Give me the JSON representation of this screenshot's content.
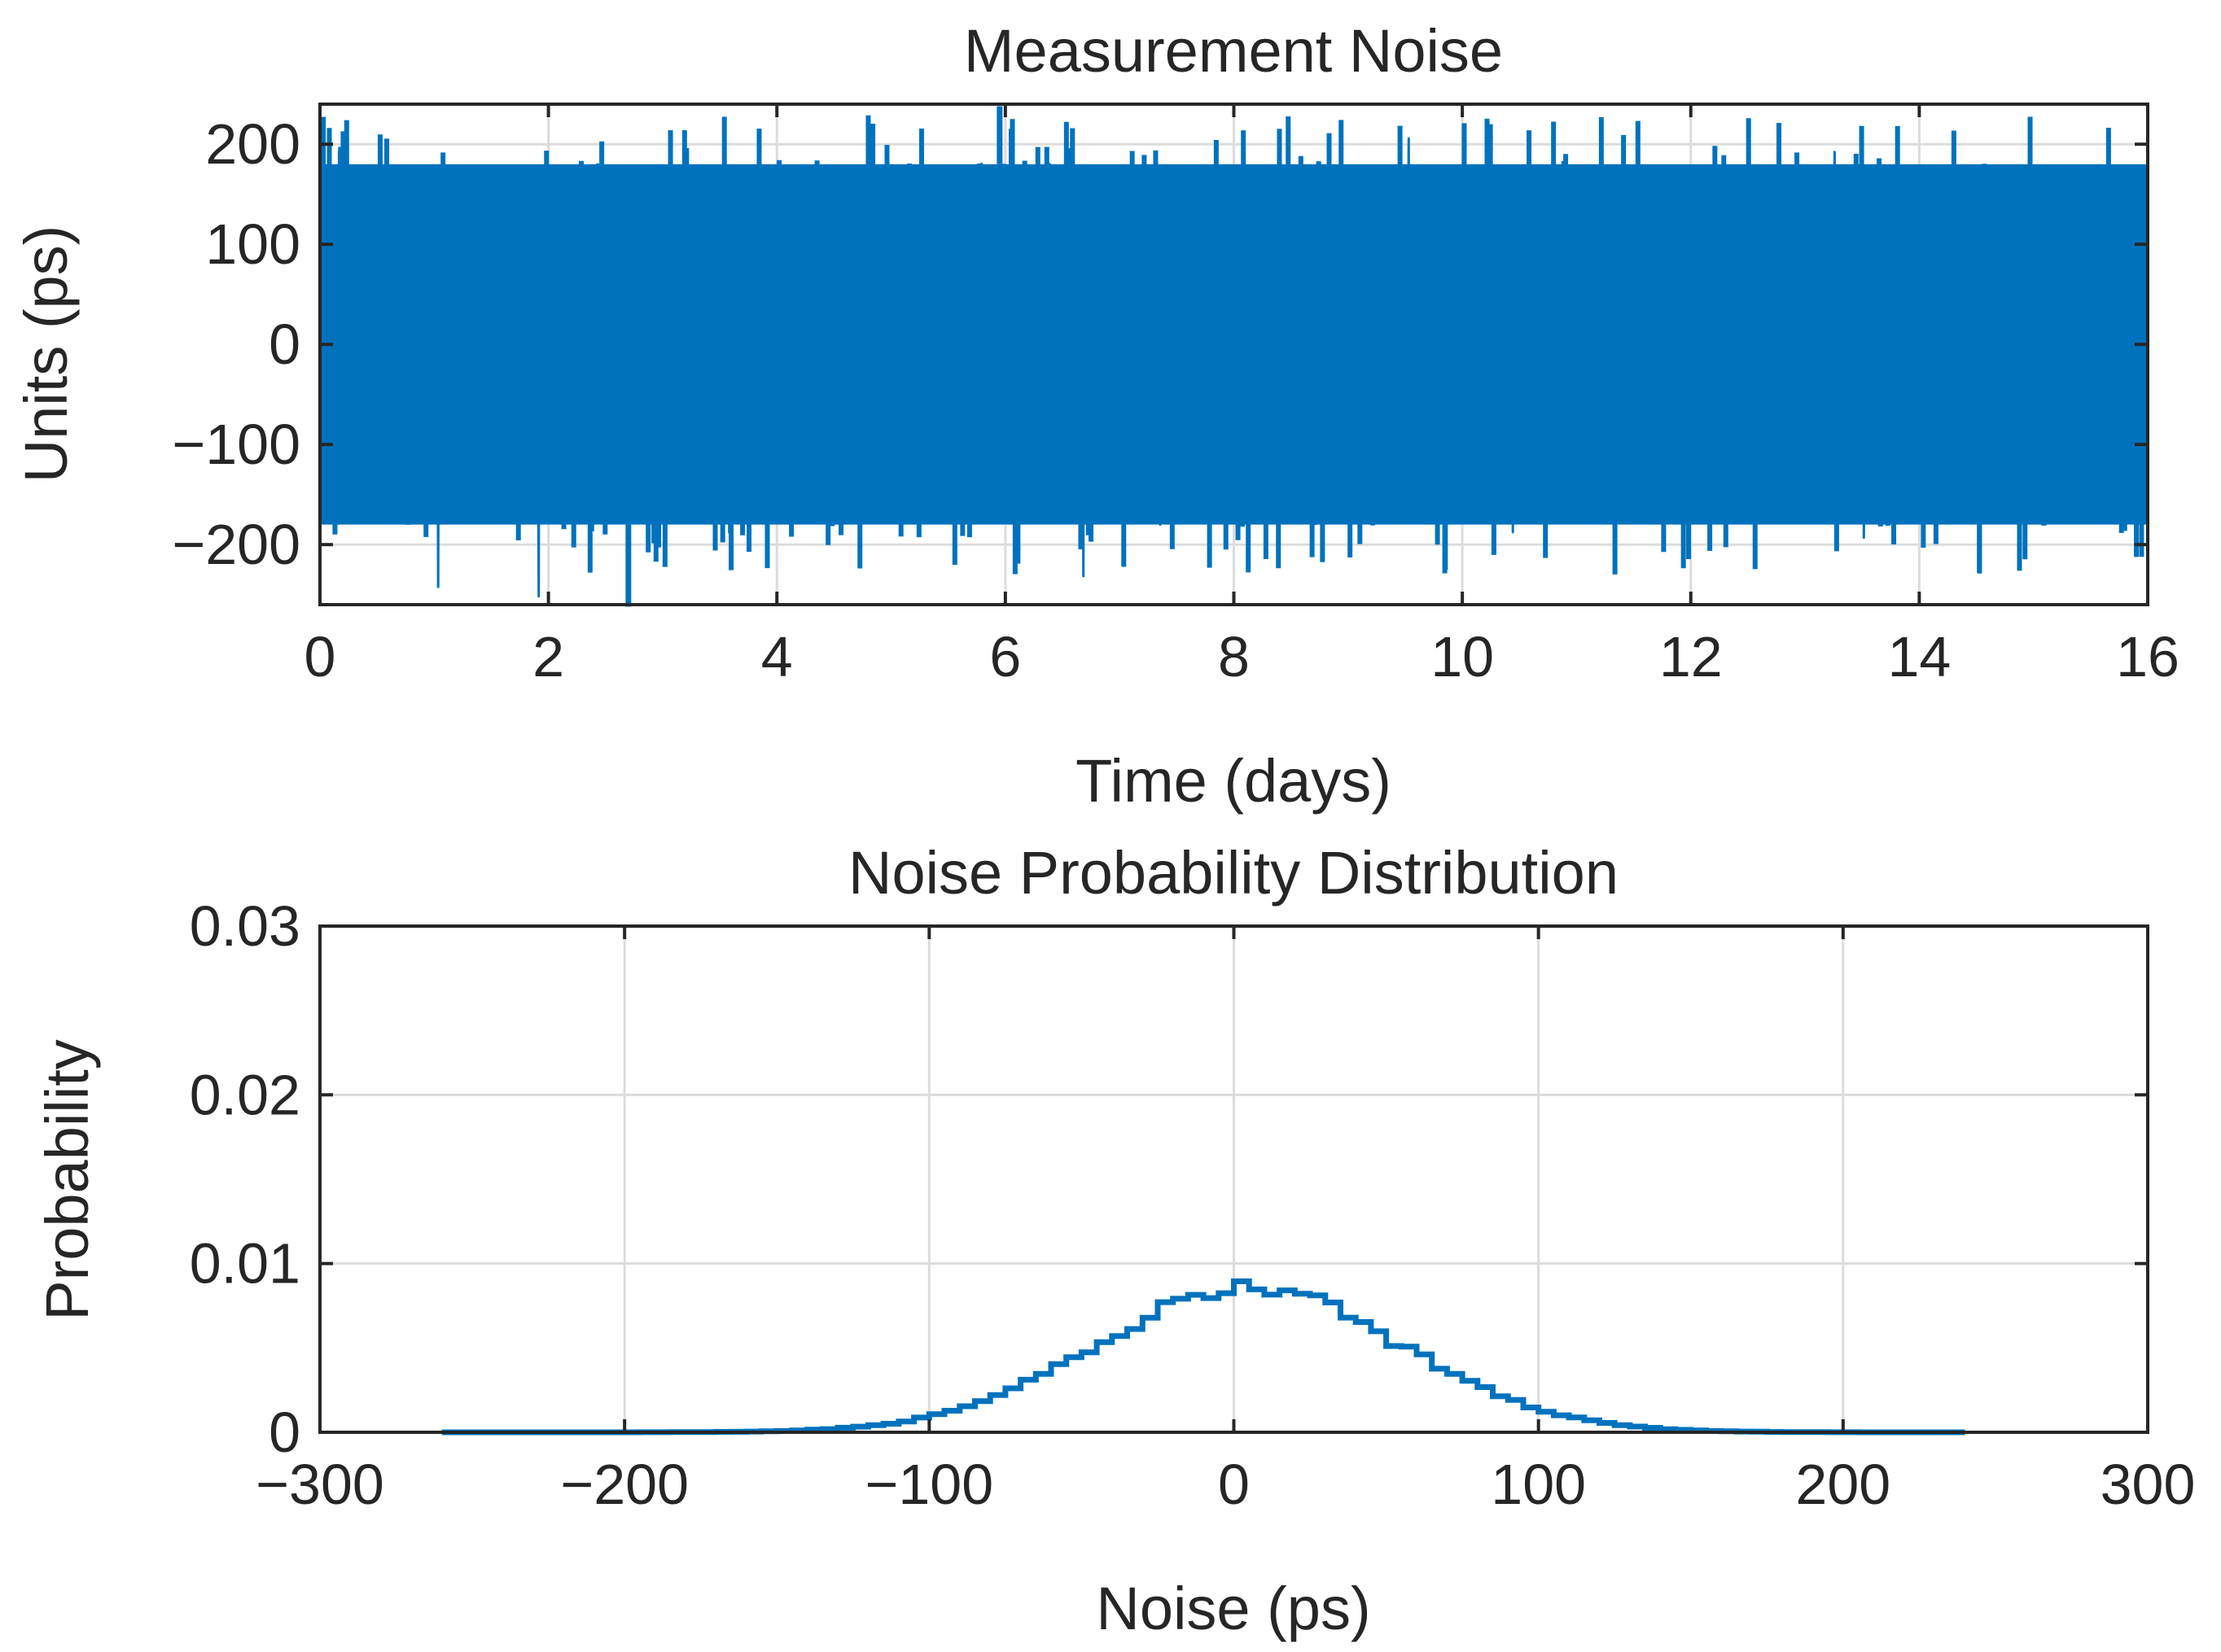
{
  "chart_data": [
    {
      "type": "line",
      "title": "Measurement Noise",
      "xlabel": "Time (days)",
      "ylabel": "Units (ps)",
      "xlim": [
        0,
        16
      ],
      "ylim": [
        -260,
        240
      ],
      "xticks": [
        0,
        2,
        4,
        6,
        8,
        10,
        12,
        14,
        16
      ],
      "xtick_labels": [
        "0",
        "2",
        "4",
        "6",
        "8",
        "10",
        "12",
        "14",
        "16"
      ],
      "yticks": [
        -200,
        -100,
        0,
        100,
        200
      ],
      "ytick_labels": [
        "−200",
        "−100",
        "0",
        "100",
        "200"
      ],
      "grid": true,
      "series": [
        {
          "color": "#0072BD",
          "distribution": "gaussian noise",
          "mean": 0,
          "std_dev": 60,
          "max": 238,
          "min": -262,
          "typical_band": [
            -180,
            180
          ]
        }
      ]
    },
    {
      "type": "histogram",
      "title": "Noise Probability Distribution",
      "xlabel": "Noise (ps)",
      "ylabel": "Probability",
      "xlim": [
        -300,
        300
      ],
      "ylim": [
        0,
        0.03
      ],
      "xticks": [
        -300,
        -200,
        -100,
        0,
        100,
        200,
        300
      ],
      "xtick_labels": [
        "−300",
        "−200",
        "−100",
        "0",
        "100",
        "200",
        "300"
      ],
      "yticks": [
        0,
        0.01,
        0.02,
        0.03
      ],
      "ytick_labels": [
        "0",
        "0.01",
        "0.02",
        "0.03"
      ],
      "grid": true,
      "series": [
        {
          "color": "#0072BD",
          "bin_range": [
            -260,
            240
          ],
          "bin_width": 5,
          "mean": 5,
          "std_dev": 50,
          "peak": 0.0085
        }
      ]
    }
  ]
}
